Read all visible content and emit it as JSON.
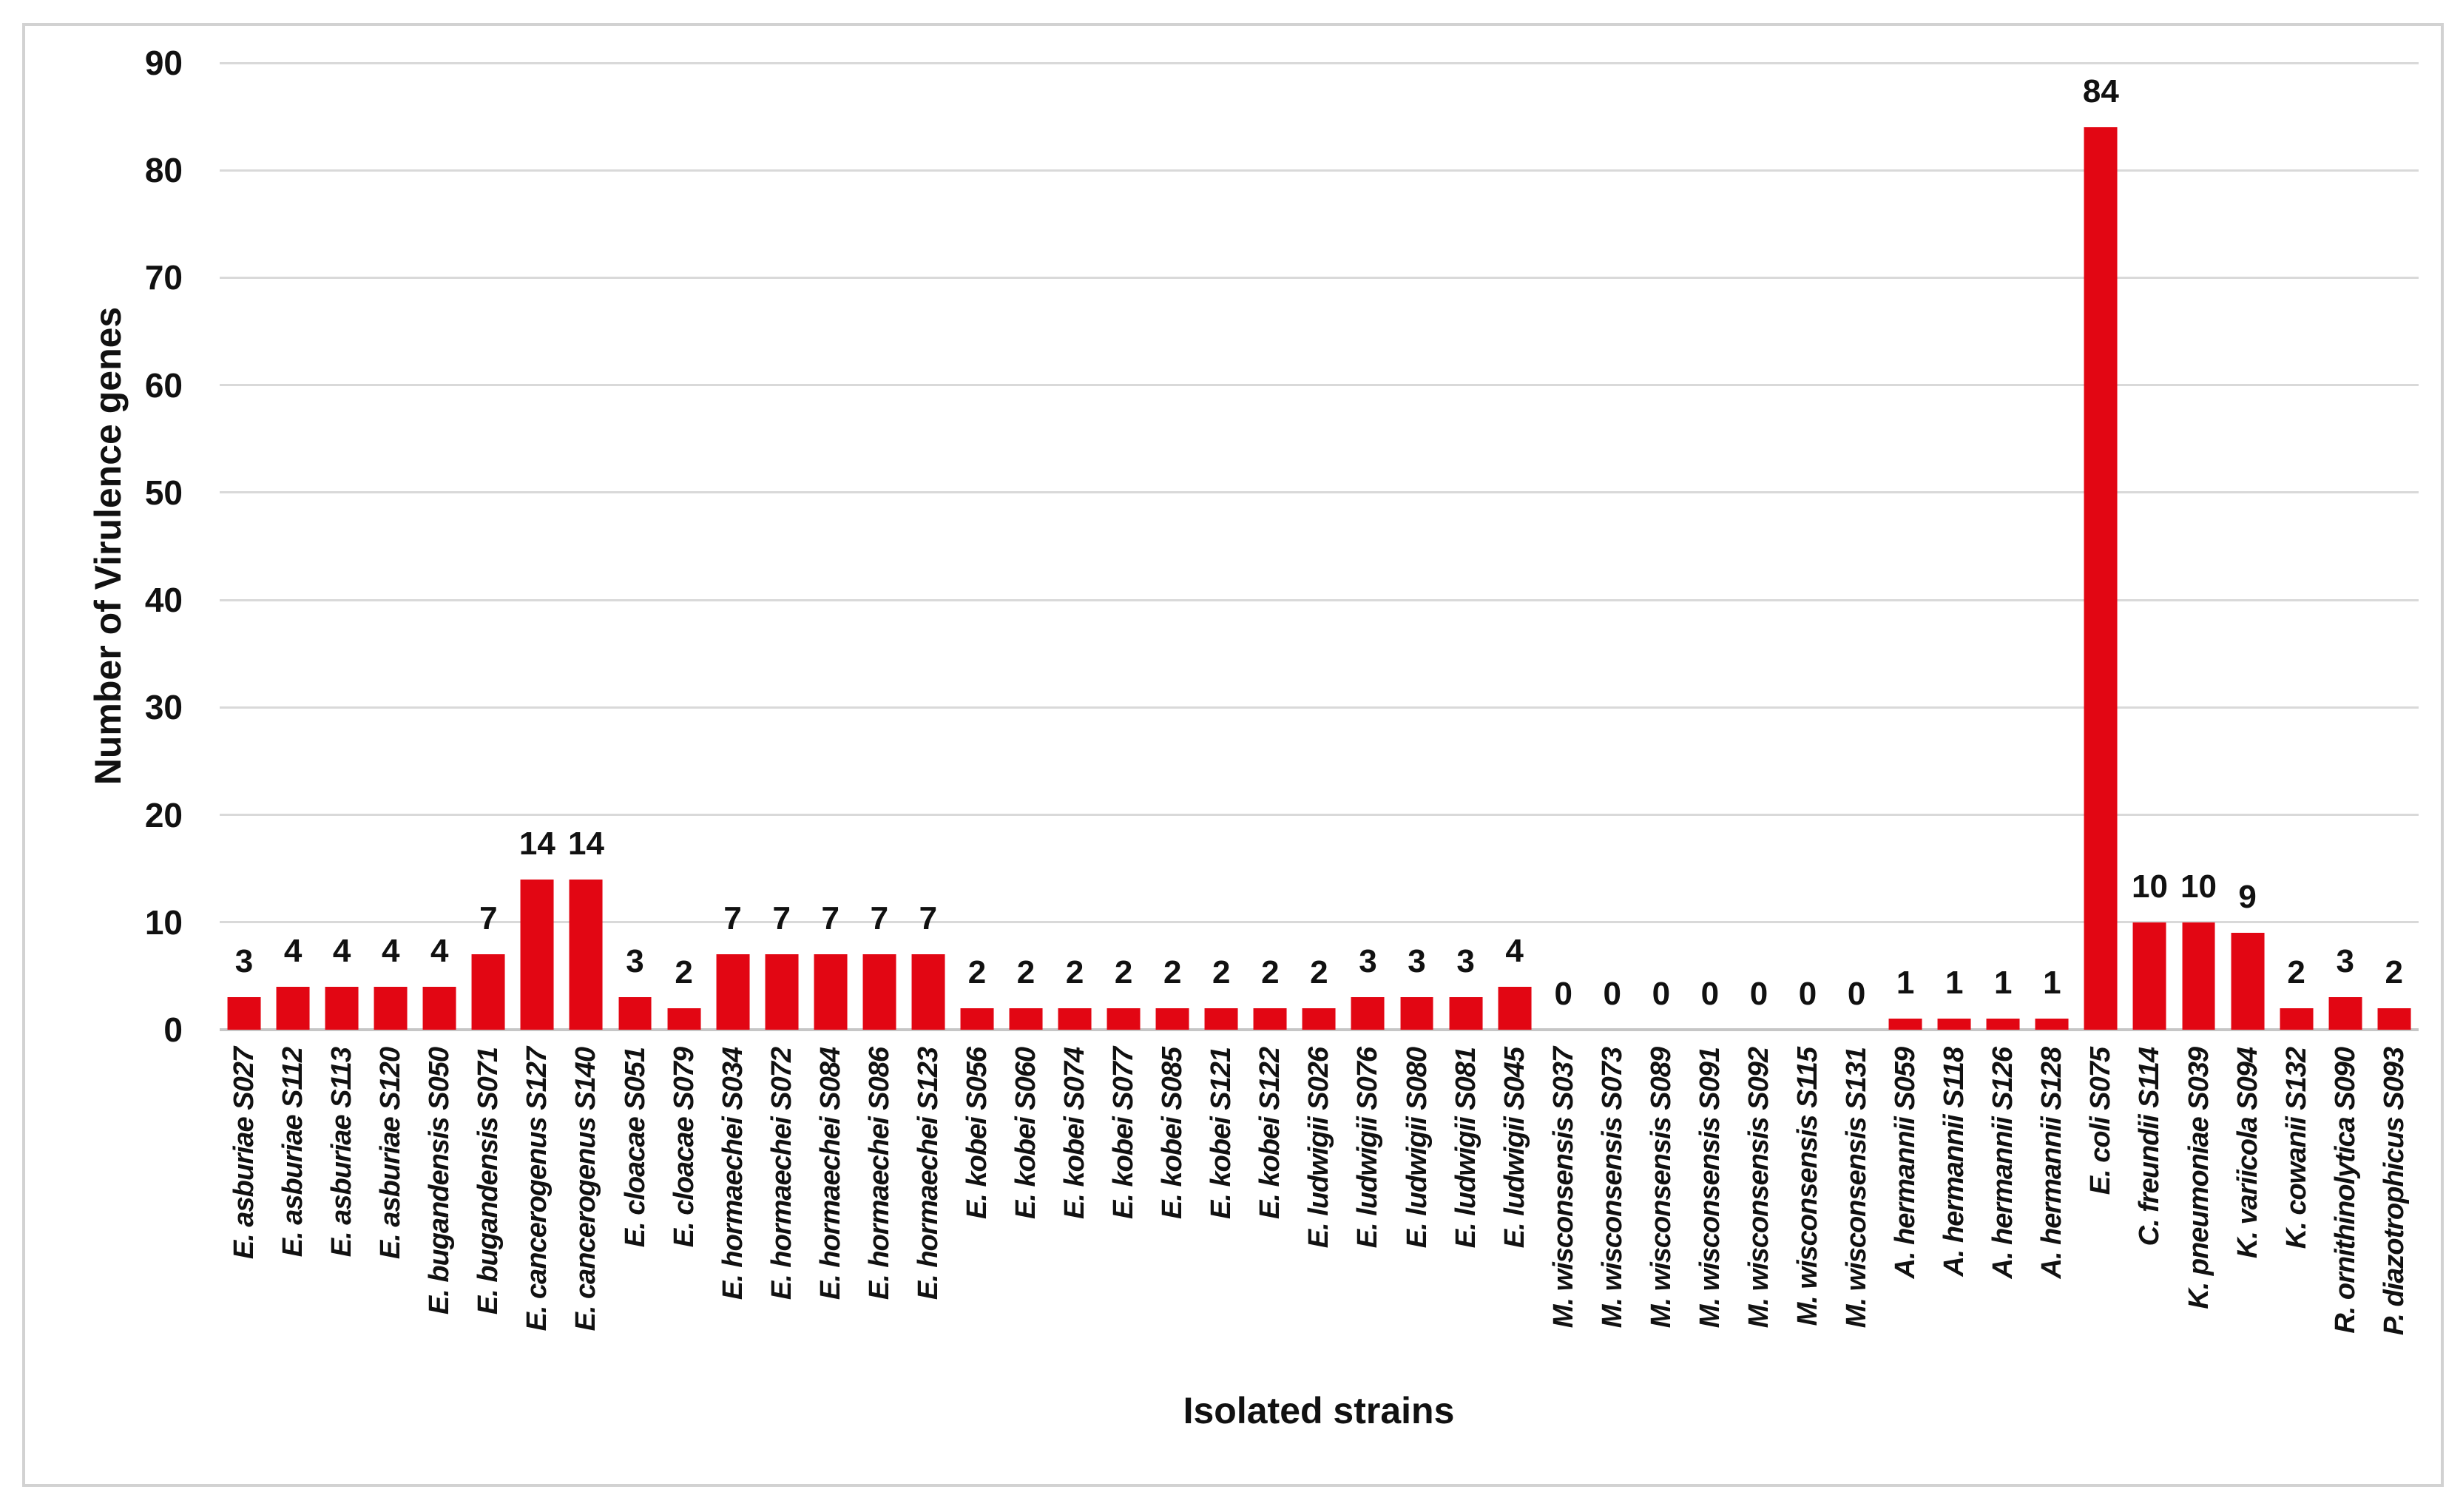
{
  "chart_data": {
    "type": "bar",
    "title": "",
    "xlabel": "Isolated strains",
    "ylabel": "Number of Virulence genes",
    "ylim": [
      0,
      90
    ],
    "yticks": [
      0,
      10,
      20,
      30,
      40,
      50,
      60,
      70,
      80,
      90
    ],
    "grid": true,
    "legend": "none",
    "bar_color": "#e20613",
    "gridline_color": "#d9d9d9",
    "categories": [
      "E. asburiae S027",
      "E. asburiae S112",
      "E. asburiae S113",
      "E. asburiae S120",
      "E. bugandensis S050",
      "E. bugandensis S071",
      "E. cancerogenus S127",
      "E. cancerogenus S140",
      "E. cloacae S051",
      "E. cloacae S079",
      "E. hormaechei S034",
      "E. hormaechei S072",
      "E. hormaechei S084",
      "E. hormaechei S086",
      "E. hormaechei S123",
      "E. kobei S056",
      "E. kobei S060",
      "E. kobei S074",
      "E. kobei S077",
      "E. kobei S085",
      "E. kobei S121",
      "E. kobei S122",
      "E. ludwigii S026",
      "E. ludwigii S076",
      "E. ludwigii S080",
      "E. ludwigii S081",
      "E. ludwigii S045",
      "M. wisconsensis S037",
      "M. wisconsensis S073",
      "M. wisconsensis S089",
      "M. wisconsensis S091",
      "M. wisconsensis S092",
      "M. wisconsensis S115",
      "M. wisconsensis S131",
      "A. hermannii S059",
      "A. hermannii S118",
      "A. hermannii S126",
      "A. hermannii S128",
      "E. coli S075",
      "C. freundii S114",
      "K. pneumoniae S039",
      "K. variicola S094",
      "K. cowanii S132",
      "R. ornithinolytica S090",
      "P. diazotrophicus S093"
    ],
    "values": [
      3,
      4,
      4,
      4,
      4,
      7,
      14,
      14,
      3,
      2,
      7,
      7,
      7,
      7,
      7,
      2,
      2,
      2,
      2,
      2,
      2,
      2,
      2,
      3,
      3,
      3,
      4,
      0,
      0,
      0,
      0,
      0,
      0,
      0,
      1,
      1,
      1,
      1,
      84,
      10,
      10,
      9,
      2,
      3,
      2
    ]
  }
}
